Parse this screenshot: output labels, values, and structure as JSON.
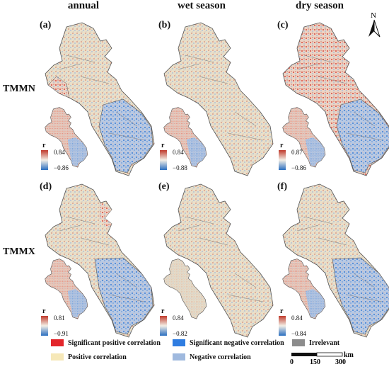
{
  "columns": [
    "annual",
    "wet season",
    "dry season"
  ],
  "rows": [
    "TMMN",
    "TMMX"
  ],
  "panels": [
    {
      "label": "(a)",
      "r_symbol": "r",
      "max": "0.84",
      "min": "−0.86"
    },
    {
      "label": "(b)",
      "r_symbol": "r",
      "max": "0.84",
      "min": "−0.88"
    },
    {
      "label": "(c)",
      "r_symbol": "r",
      "max": "0.87",
      "min": "−0.86"
    },
    {
      "label": "(d)",
      "r_symbol": "r",
      "max": "0.81",
      "min": "−0.91"
    },
    {
      "label": "(e)",
      "r_symbol": "r",
      "max": "0.84",
      "min": "−0.82"
    },
    {
      "label": "(f)",
      "r_symbol": "r",
      "max": "0.84",
      "min": "−0.84"
    }
  ],
  "north_label": "N",
  "legend": [
    {
      "label": "Significant positive correlation",
      "color": "#e3262b"
    },
    {
      "label": "Significant negative correlation",
      "color": "#2f7de1"
    },
    {
      "label": "Irrelevant",
      "color": "#8c8c8c"
    },
    {
      "label": "Positive correlation",
      "color": "#f6e8b8"
    },
    {
      "label": "Negative correlation",
      "color": "#9fb9de"
    }
  ],
  "scale_bar": {
    "ticks": [
      "0",
      "150",
      "300"
    ],
    "unit": "km"
  }
}
